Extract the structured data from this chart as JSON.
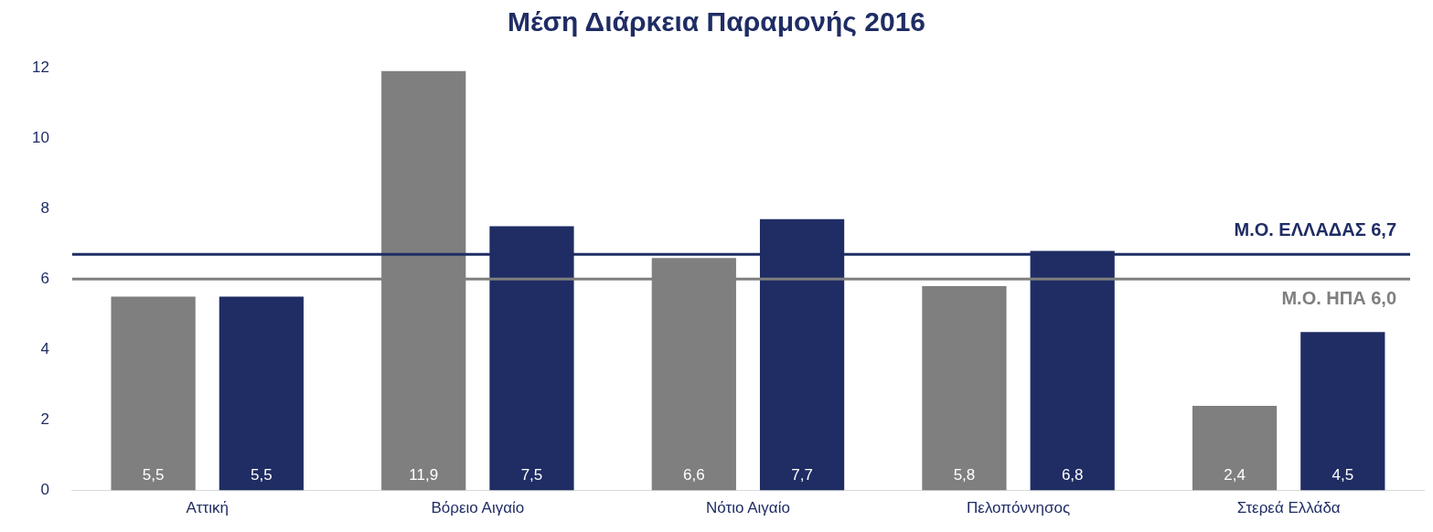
{
  "chart_data": {
    "type": "bar",
    "title": "Μέση Διάρκεια Παραμονής 2016",
    "categories": [
      "Αττική",
      "Βόρειο Αιγαίο",
      "Νότιο Αιγαίο",
      "Πελοπόννησος",
      "Στερεά Ελλάδα"
    ],
    "series": [
      {
        "color": "#7f7f7f",
        "values": [
          5.5,
          11.9,
          6.6,
          5.8,
          2.4
        ],
        "value_labels": [
          "5,5",
          "11,9",
          "6,6",
          "5,8",
          "2,4"
        ]
      },
      {
        "color": "#1f2d64",
        "values": [
          5.5,
          7.5,
          7.7,
          6.8,
          4.5
        ],
        "value_labels": [
          "5,5",
          "7,5",
          "7,7",
          "6,8",
          "4,5"
        ]
      }
    ],
    "ylim": [
      0,
      12
    ],
    "yticks": [
      0,
      2,
      4,
      6,
      8,
      10,
      12
    ],
    "grid": false,
    "legend": false,
    "ref_lines": [
      {
        "axis": "y",
        "value": 6.7,
        "label": "Μ.Ο. ΕΛΛΑΔΑΣ 6,7",
        "color": "#1f2d64"
      },
      {
        "axis": "y",
        "value": 6.0,
        "label": "Μ.Ο. ΗΠΑ 6,0",
        "color": "#7f7f7f"
      }
    ]
  }
}
